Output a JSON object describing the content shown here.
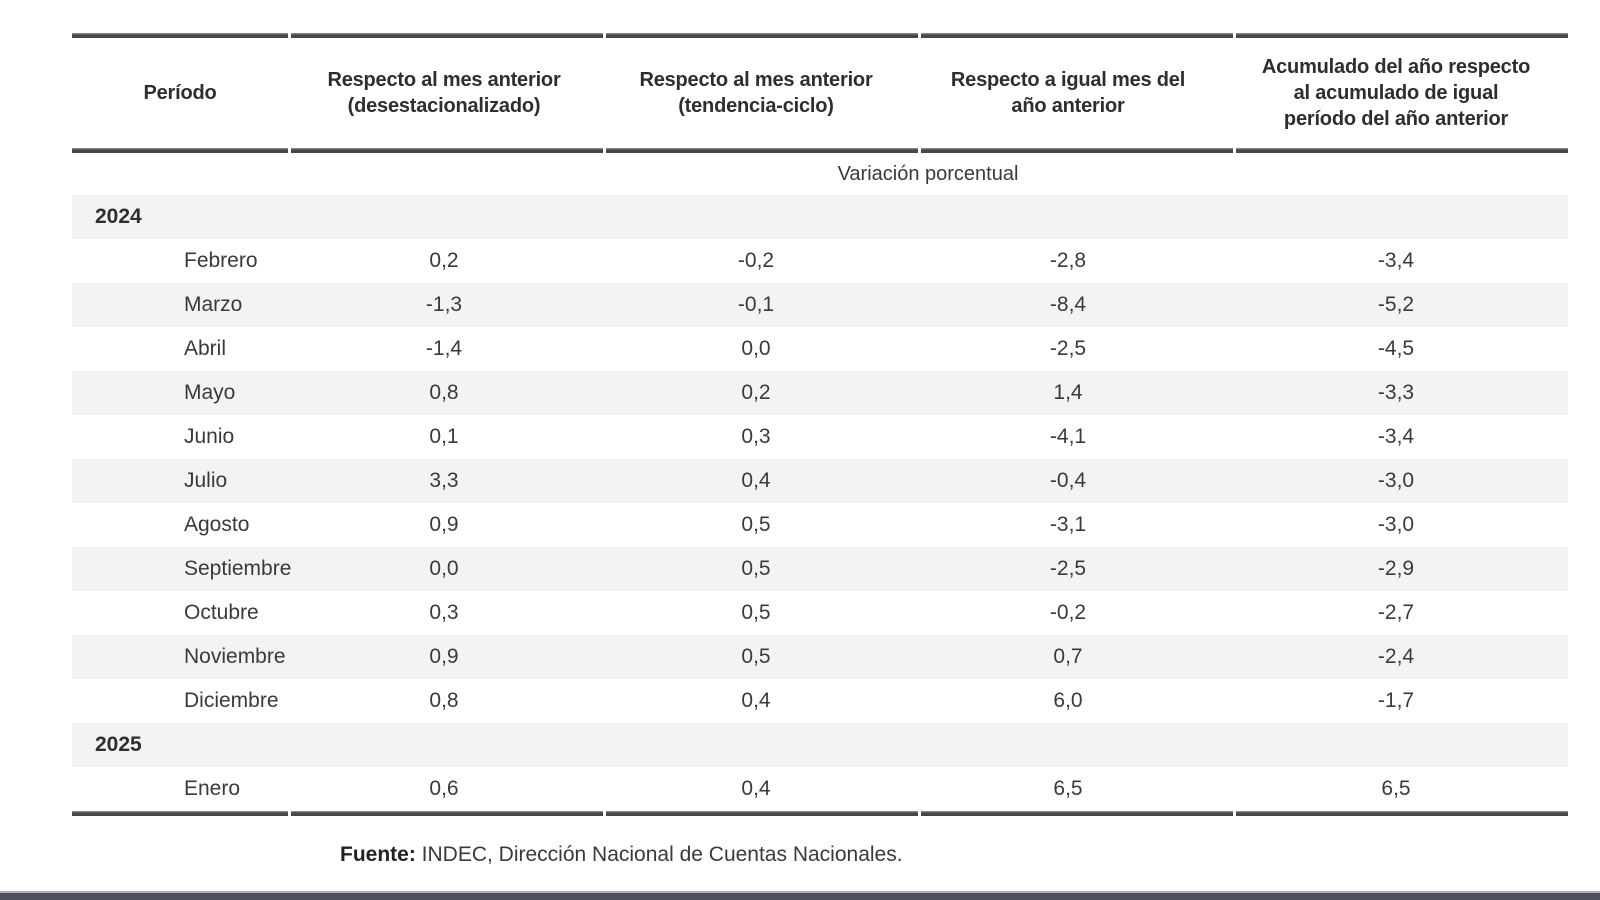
{
  "table": {
    "columns": [
      "Período",
      "Respecto al mes anterior\n(desestacionalizado)",
      "Respecto al mes anterior\n(tendencia-ciclo)",
      "Respecto a igual mes del\naño anterior",
      "Acumulado del año respecto\nal acumulado de igual\nperíodo del año anterior"
    ],
    "subheader": "Variación porcentual",
    "rows": [
      {
        "type": "year",
        "label": "2024",
        "values": [
          "",
          "",
          "",
          ""
        ]
      },
      {
        "type": "month",
        "label": "Febrero",
        "values": [
          "0,2",
          "-0,2",
          "-2,8",
          "-3,4"
        ]
      },
      {
        "type": "month",
        "label": "Marzo",
        "values": [
          "-1,3",
          "-0,1",
          "-8,4",
          "-5,2"
        ]
      },
      {
        "type": "month",
        "label": "Abril",
        "values": [
          "-1,4",
          "0,0",
          "-2,5",
          "-4,5"
        ]
      },
      {
        "type": "month",
        "label": "Mayo",
        "values": [
          "0,8",
          "0,2",
          "1,4",
          "-3,3"
        ]
      },
      {
        "type": "month",
        "label": "Junio",
        "values": [
          "0,1",
          "0,3",
          "-4,1",
          "-3,4"
        ]
      },
      {
        "type": "month",
        "label": "Julio",
        "values": [
          "3,3",
          "0,4",
          "-0,4",
          "-3,0"
        ]
      },
      {
        "type": "month",
        "label": "Agosto",
        "values": [
          "0,9",
          "0,5",
          "-3,1",
          "-3,0"
        ]
      },
      {
        "type": "month",
        "label": "Septiembre",
        "values": [
          "0,0",
          "0,5",
          "-2,5",
          "-2,9"
        ]
      },
      {
        "type": "month",
        "label": "Octubre",
        "values": [
          "0,3",
          "0,5",
          "-0,2",
          "-2,7"
        ]
      },
      {
        "type": "month",
        "label": "Noviembre",
        "values": [
          "0,9",
          "0,5",
          "0,7",
          "-2,4"
        ]
      },
      {
        "type": "month",
        "label": "Diciembre",
        "values": [
          "0,8",
          "0,4",
          "6,0",
          "-1,7"
        ]
      },
      {
        "type": "year",
        "label": "2025",
        "values": [
          "",
          "",
          "",
          ""
        ]
      },
      {
        "type": "month",
        "label": "Enero",
        "values": [
          "0,6",
          "0,4",
          "6,5",
          "6,5"
        ]
      }
    ],
    "footer": {
      "label": "Fuente:",
      "text": " INDEC, Dirección Nacional de Cuentas Nacionales."
    }
  },
  "colors": {
    "stripe": "#f4f3f3",
    "rule": "#474747",
    "text": "#3a3a3a",
    "bottom_band": "#4c515b"
  },
  "chart_data": {
    "type": "table",
    "title": "Variación porcentual",
    "categories": [
      "2024 Febrero",
      "2024 Marzo",
      "2024 Abril",
      "2024 Mayo",
      "2024 Junio",
      "2024 Julio",
      "2024 Agosto",
      "2024 Septiembre",
      "2024 Octubre",
      "2024 Noviembre",
      "2024 Diciembre",
      "2025 Enero"
    ],
    "series": [
      {
        "name": "Respecto al mes anterior (desestacionalizado)",
        "values": [
          0.2,
          -1.3,
          -1.4,
          0.8,
          0.1,
          3.3,
          0.9,
          0.0,
          0.3,
          0.9,
          0.8,
          0.6
        ]
      },
      {
        "name": "Respecto al mes anterior (tendencia-ciclo)",
        "values": [
          -0.2,
          -0.1,
          0.0,
          0.2,
          0.3,
          0.4,
          0.5,
          0.5,
          0.5,
          0.5,
          0.4,
          0.4
        ]
      },
      {
        "name": "Respecto a igual mes del año anterior",
        "values": [
          -2.8,
          -8.4,
          -2.5,
          1.4,
          -4.1,
          -0.4,
          -3.1,
          -2.5,
          -0.2,
          0.7,
          6.0,
          6.5
        ]
      },
      {
        "name": "Acumulado del año respecto al acumulado de igual período del año anterior",
        "values": [
          -3.4,
          -5.2,
          -4.5,
          -3.3,
          -3.4,
          -3.0,
          -3.0,
          -2.9,
          -2.7,
          -2.4,
          -1.7,
          6.5
        ]
      }
    ]
  }
}
